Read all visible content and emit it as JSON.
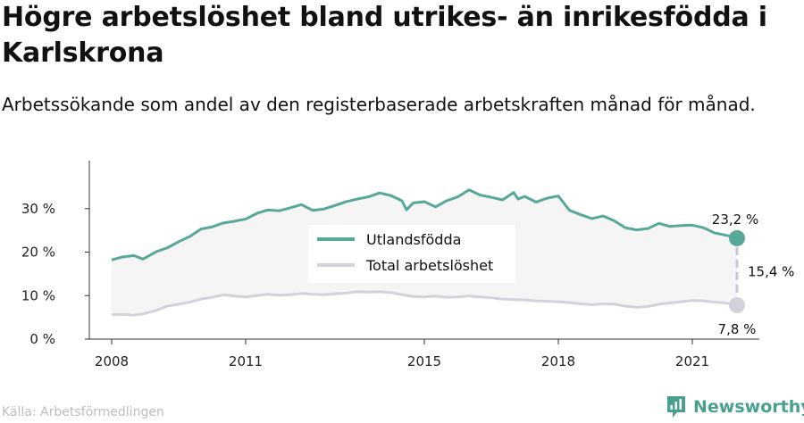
{
  "title": "Högre arbetslöshet bland utrikes- än inrikesfödda i Karlskrona",
  "subtitle": "Arbetssökande som andel av den registerbaserade arbetskraften månad för månad.",
  "source": "Källa: Arbetsförmedlingen",
  "brand": {
    "name": "Newsworthy",
    "color": "#49a08f"
  },
  "chart_data": {
    "type": "line",
    "ylim": [
      0,
      40
    ],
    "y_ticks": [
      0,
      10,
      20,
      30
    ],
    "y_tick_labels": [
      "0 %",
      "10 %",
      "20 %",
      "30 %"
    ],
    "x_tick_labels": [
      "2008",
      "2011",
      "2015",
      "2018",
      "2021"
    ],
    "x_tick_values": [
      2008,
      2011,
      2015,
      2018,
      2021
    ],
    "grid": false,
    "legend_position": "center",
    "series": [
      {
        "name": "Utlandsfödda",
        "color": "#58a89a",
        "points": [
          [
            2008.0,
            18.2
          ],
          [
            2008.25,
            18.9
          ],
          [
            2008.5,
            19.2
          ],
          [
            2008.7,
            18.4
          ],
          [
            2009.0,
            20.1
          ],
          [
            2009.25,
            21.0
          ],
          [
            2009.5,
            22.4
          ],
          [
            2009.75,
            23.6
          ],
          [
            2010.0,
            25.3
          ],
          [
            2010.25,
            25.8
          ],
          [
            2010.5,
            26.7
          ],
          [
            2010.75,
            27.1
          ],
          [
            2011.0,
            27.6
          ],
          [
            2011.25,
            28.9
          ],
          [
            2011.5,
            29.7
          ],
          [
            2011.75,
            29.5
          ],
          [
            2012.0,
            30.2
          ],
          [
            2012.25,
            30.9
          ],
          [
            2012.5,
            29.6
          ],
          [
            2012.75,
            29.9
          ],
          [
            2013.0,
            30.7
          ],
          [
            2013.25,
            31.6
          ],
          [
            2013.5,
            32.2
          ],
          [
            2013.75,
            32.7
          ],
          [
            2014.0,
            33.6
          ],
          [
            2014.25,
            33.0
          ],
          [
            2014.5,
            31.8
          ],
          [
            2014.6,
            29.7
          ],
          [
            2014.75,
            31.3
          ],
          [
            2015.0,
            31.6
          ],
          [
            2015.25,
            30.4
          ],
          [
            2015.5,
            31.8
          ],
          [
            2015.75,
            32.7
          ],
          [
            2016.0,
            34.3
          ],
          [
            2016.25,
            33.1
          ],
          [
            2016.5,
            32.6
          ],
          [
            2016.75,
            32.0
          ],
          [
            2017.0,
            33.7
          ],
          [
            2017.1,
            32.2
          ],
          [
            2017.25,
            32.8
          ],
          [
            2017.5,
            31.5
          ],
          [
            2017.75,
            32.4
          ],
          [
            2018.0,
            32.9
          ],
          [
            2018.25,
            29.6
          ],
          [
            2018.5,
            28.6
          ],
          [
            2018.75,
            27.7
          ],
          [
            2019.0,
            28.3
          ],
          [
            2019.25,
            27.2
          ],
          [
            2019.5,
            25.6
          ],
          [
            2019.75,
            25.1
          ],
          [
            2020.0,
            25.4
          ],
          [
            2020.25,
            26.6
          ],
          [
            2020.5,
            25.9
          ],
          [
            2020.75,
            26.1
          ],
          [
            2021.0,
            26.2
          ],
          [
            2021.25,
            25.6
          ],
          [
            2021.5,
            24.4
          ],
          [
            2021.75,
            23.9
          ],
          [
            2022.0,
            23.2
          ]
        ]
      },
      {
        "name": "Total arbetslöshet",
        "color": "#d3d2dc",
        "points": [
          [
            2008.0,
            5.6
          ],
          [
            2008.25,
            5.7
          ],
          [
            2008.5,
            5.5
          ],
          [
            2008.75,
            5.9
          ],
          [
            2009.0,
            6.6
          ],
          [
            2009.25,
            7.6
          ],
          [
            2009.5,
            8.0
          ],
          [
            2009.75,
            8.5
          ],
          [
            2010.0,
            9.2
          ],
          [
            2010.25,
            9.6
          ],
          [
            2010.5,
            10.2
          ],
          [
            2010.75,
            9.9
          ],
          [
            2011.0,
            9.7
          ],
          [
            2011.25,
            10.0
          ],
          [
            2011.5,
            10.3
          ],
          [
            2011.75,
            10.1
          ],
          [
            2012.0,
            10.2
          ],
          [
            2012.25,
            10.5
          ],
          [
            2012.5,
            10.3
          ],
          [
            2012.75,
            10.2
          ],
          [
            2013.0,
            10.4
          ],
          [
            2013.25,
            10.6
          ],
          [
            2013.5,
            10.9
          ],
          [
            2013.75,
            10.8
          ],
          [
            2014.0,
            10.9
          ],
          [
            2014.25,
            10.7
          ],
          [
            2014.5,
            10.2
          ],
          [
            2014.75,
            9.8
          ],
          [
            2015.0,
            9.7
          ],
          [
            2015.25,
            9.9
          ],
          [
            2015.5,
            9.6
          ],
          [
            2015.75,
            9.7
          ],
          [
            2016.0,
            9.9
          ],
          [
            2016.25,
            9.7
          ],
          [
            2016.5,
            9.5
          ],
          [
            2016.75,
            9.2
          ],
          [
            2017.0,
            9.1
          ],
          [
            2017.25,
            9.0
          ],
          [
            2017.5,
            8.8
          ],
          [
            2017.75,
            8.7
          ],
          [
            2018.0,
            8.6
          ],
          [
            2018.25,
            8.4
          ],
          [
            2018.5,
            8.1
          ],
          [
            2018.75,
            7.9
          ],
          [
            2019.0,
            8.1
          ],
          [
            2019.25,
            8.0
          ],
          [
            2019.5,
            7.6
          ],
          [
            2019.75,
            7.3
          ],
          [
            2020.0,
            7.5
          ],
          [
            2020.25,
            8.0
          ],
          [
            2020.5,
            8.3
          ],
          [
            2020.75,
            8.6
          ],
          [
            2021.0,
            8.9
          ],
          [
            2021.25,
            8.8
          ],
          [
            2021.5,
            8.5
          ],
          [
            2021.75,
            8.3
          ],
          [
            2022.0,
            7.8
          ]
        ]
      }
    ],
    "annotations": {
      "last_utlandsfodda": "23,2 %",
      "last_total": "7,8 %",
      "gap": "15,4 %"
    }
  }
}
